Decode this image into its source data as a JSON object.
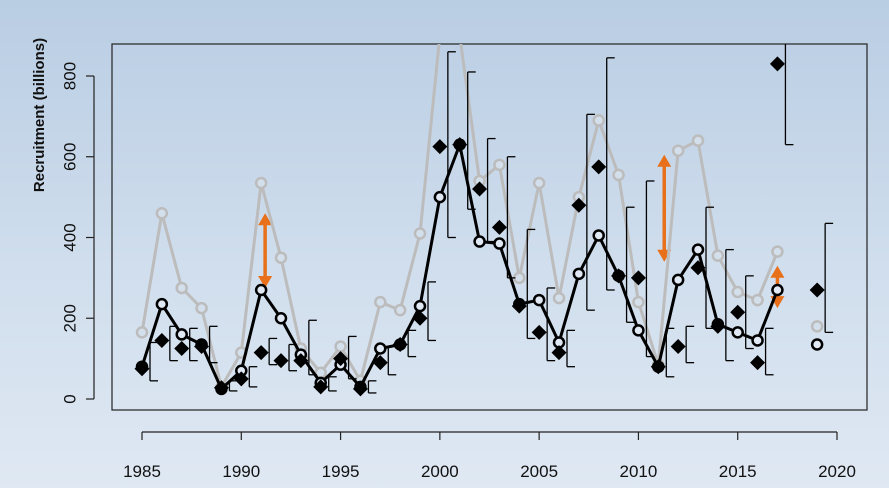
{
  "chart_data": {
    "type": "line",
    "ylabel": "Recruitment (billions)",
    "xlim": [
      1984,
      2019
    ],
    "ylim": [
      0,
      870
    ],
    "x_ticks": [
      1985,
      1990,
      1995,
      2000,
      2005,
      2010,
      2015,
      2020
    ],
    "y_ticks": [
      0,
      200,
      400,
      600,
      800
    ],
    "grid": false,
    "colors": {
      "grey_series": "#bcbcbc",
      "black_series": "#000000",
      "arrows": "#e8701a",
      "error_bars": "#000000"
    },
    "series": [
      {
        "style": "grey line with open circles",
        "points": [
          [
            1985,
            165
          ],
          [
            1986,
            460
          ],
          [
            1987,
            275
          ],
          [
            1988,
            225
          ],
          [
            1989,
            30
          ],
          [
            1990,
            115
          ],
          [
            1991,
            535
          ],
          [
            1992,
            350
          ],
          [
            1993,
            125
          ],
          [
            1994,
            65
          ],
          [
            1995,
            130
          ],
          [
            1996,
            45
          ],
          [
            1997,
            240
          ],
          [
            1998,
            220
          ],
          [
            1999,
            410
          ],
          [
            2000,
            900
          ],
          [
            2001,
            900
          ],
          [
            2002,
            540
          ],
          [
            2003,
            580
          ],
          [
            2004,
            300
          ],
          [
            2005,
            535
          ],
          [
            2006,
            250
          ],
          [
            2007,
            500
          ],
          [
            2008,
            690
          ],
          [
            2009,
            555
          ],
          [
            2010,
            240
          ],
          [
            2011,
            85
          ],
          [
            2012,
            615
          ],
          [
            2013,
            640
          ],
          [
            2014,
            355
          ],
          [
            2015,
            265
          ],
          [
            2016,
            245
          ],
          [
            2017,
            365
          ]
        ]
      },
      {
        "style": "black line with open circles",
        "points": [
          [
            1985,
            80
          ],
          [
            1986,
            235
          ],
          [
            1987,
            160
          ],
          [
            1988,
            135
          ],
          [
            1989,
            25
          ],
          [
            1990,
            70
          ],
          [
            1991,
            270
          ],
          [
            1992,
            200
          ],
          [
            1993,
            110
          ],
          [
            1994,
            40
          ],
          [
            1995,
            85
          ],
          [
            1996,
            30
          ],
          [
            1997,
            125
          ],
          [
            1998,
            135
          ],
          [
            1999,
            230
          ],
          [
            2000,
            500
          ],
          [
            2001,
            630
          ],
          [
            2002,
            390
          ],
          [
            2003,
            385
          ],
          [
            2004,
            235
          ],
          [
            2005,
            245
          ],
          [
            2006,
            140
          ],
          [
            2007,
            310
          ],
          [
            2008,
            405
          ],
          [
            2009,
            305
          ],
          [
            2010,
            170
          ],
          [
            2011,
            80
          ],
          [
            2012,
            295
          ],
          [
            2013,
            370
          ],
          [
            2014,
            185
          ],
          [
            2015,
            165
          ],
          [
            2016,
            145
          ],
          [
            2017,
            270
          ]
        ]
      },
      {
        "style": "black diamonds with error bars",
        "points": [
          {
            "x": 1985,
            "y": 75,
            "lo": 45,
            "hi": 140
          },
          {
            "x": 1986,
            "y": 145,
            "lo": 95,
            "hi": 180
          },
          {
            "x": 1987,
            "y": 125,
            "lo": 95,
            "hi": 175
          },
          {
            "x": 1988,
            "y": 130,
            "lo": 90,
            "hi": 180
          },
          {
            "x": 1989,
            "y": 28,
            "lo": 20,
            "hi": 45
          },
          {
            "x": 1990,
            "y": 50,
            "lo": 30,
            "hi": 80
          },
          {
            "x": 1991,
            "y": 115,
            "lo": 85,
            "hi": 150
          },
          {
            "x": 1992,
            "y": 95,
            "lo": 70,
            "hi": 135
          },
          {
            "x": 1993,
            "y": 95,
            "lo": 60,
            "hi": 195
          },
          {
            "x": 1994,
            "y": 30,
            "lo": 20,
            "hi": 55
          },
          {
            "x": 1995,
            "y": 100,
            "lo": 50,
            "hi": 155
          },
          {
            "x": 1996,
            "y": 25,
            "lo": 15,
            "hi": 45
          },
          {
            "x": 1997,
            "y": 90,
            "lo": 60,
            "hi": 130
          },
          {
            "x": 1998,
            "y": 135,
            "lo": 105,
            "hi": 170
          },
          {
            "x": 1999,
            "y": 200,
            "lo": 145,
            "hi": 290
          },
          {
            "x": 2000,
            "y": 625,
            "lo": 400,
            "hi": 860
          },
          {
            "x": 2001,
            "y": 630,
            "lo": 470,
            "hi": 810
          },
          {
            "x": 2002,
            "y": 520,
            "lo": 390,
            "hi": 645
          },
          {
            "x": 2003,
            "y": 425,
            "lo": 300,
            "hi": 600
          },
          {
            "x": 2004,
            "y": 230,
            "lo": 150,
            "hi": 420
          },
          {
            "x": 2005,
            "y": 165,
            "lo": 95,
            "hi": 275
          },
          {
            "x": 2006,
            "y": 115,
            "lo": 80,
            "hi": 170
          },
          {
            "x": 2007,
            "y": 480,
            "lo": 220,
            "hi": 705
          },
          {
            "x": 2008,
            "y": 575,
            "lo": 270,
            "hi": 845
          },
          {
            "x": 2009,
            "y": 305,
            "lo": 190,
            "hi": 475
          },
          {
            "x": 2010,
            "y": 300,
            "lo": 105,
            "hi": 540
          },
          {
            "x": 2011,
            "y": 80,
            "lo": 55,
            "hi": 175
          },
          {
            "x": 2012,
            "y": 130,
            "lo": 90,
            "hi": 180
          },
          {
            "x": 2013,
            "y": 325,
            "lo": 175,
            "hi": 475
          },
          {
            "x": 2014,
            "y": 180,
            "lo": 95,
            "hi": 370
          },
          {
            "x": 2015,
            "y": 215,
            "lo": 125,
            "hi": 305
          },
          {
            "x": 2016,
            "y": 90,
            "lo": 60,
            "hi": 175
          },
          {
            "x": 2017,
            "y": 830,
            "lo": 630,
            "hi": 890
          },
          {
            "x": 2019,
            "y": 270,
            "lo": 165,
            "hi": 435
          }
        ]
      },
      {
        "style": "single open black circle",
        "points": [
          [
            2019,
            135
          ]
        ]
      },
      {
        "style": "single open grey circle",
        "points": [
          [
            2019,
            180
          ]
        ]
      }
    ],
    "annotations": [
      {
        "type": "double-arrow",
        "x": 1991.2,
        "y_from": 275,
        "y_to": 460
      },
      {
        "type": "double-arrow",
        "x": 2011.3,
        "y_from": 340,
        "y_to": 605
      },
      {
        "type": "double-arrow",
        "x": 2017.0,
        "y_from": 225,
        "y_to": 330
      }
    ]
  }
}
